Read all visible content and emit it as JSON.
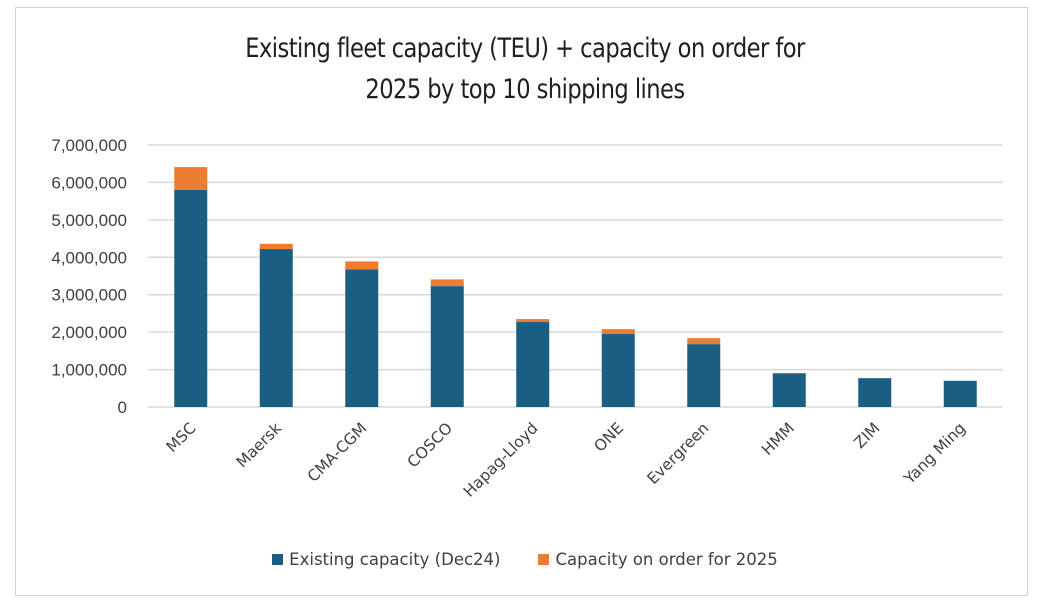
{
  "chart_data": {
    "type": "bar",
    "stacked": true,
    "title": "Existing fleet capacity (TEU) + capacity on order for 2025 by top 10 shipping lines",
    "title_lines": [
      "Existing fleet capacity (TEU) + capacity on order for",
      "2025 by top 10 shipping lines"
    ],
    "xlabel": "",
    "ylabel": "",
    "ylim": [
      0,
      7000000
    ],
    "yticks": [
      0,
      1000000,
      2000000,
      3000000,
      4000000,
      5000000,
      6000000,
      7000000
    ],
    "ytick_labels": [
      "0",
      "1,000,000",
      "2,000,000",
      "3,000,000",
      "4,000,000",
      "5,000,000",
      "6,000,000",
      "7,000,000"
    ],
    "grid": true,
    "legend_position": "bottom",
    "categories": [
      "MSC",
      "Maersk",
      "CMA-CGM",
      "COSCO",
      "Hapag-Lloyd",
      "ONE",
      "Evergreen",
      "HMM",
      "ZIM",
      "Yang Ming"
    ],
    "series": [
      {
        "name": "Existing capacity (Dec24)",
        "color": "#1a5e83",
        "values": [
          5800000,
          4220000,
          3680000,
          3230000,
          2270000,
          1950000,
          1680000,
          900000,
          770000,
          700000
        ]
      },
      {
        "name": "Capacity on order for 2025",
        "color": "#ed7d31",
        "values": [
          610000,
          140000,
          210000,
          180000,
          80000,
          130000,
          160000,
          10000,
          0,
          0
        ]
      }
    ]
  }
}
